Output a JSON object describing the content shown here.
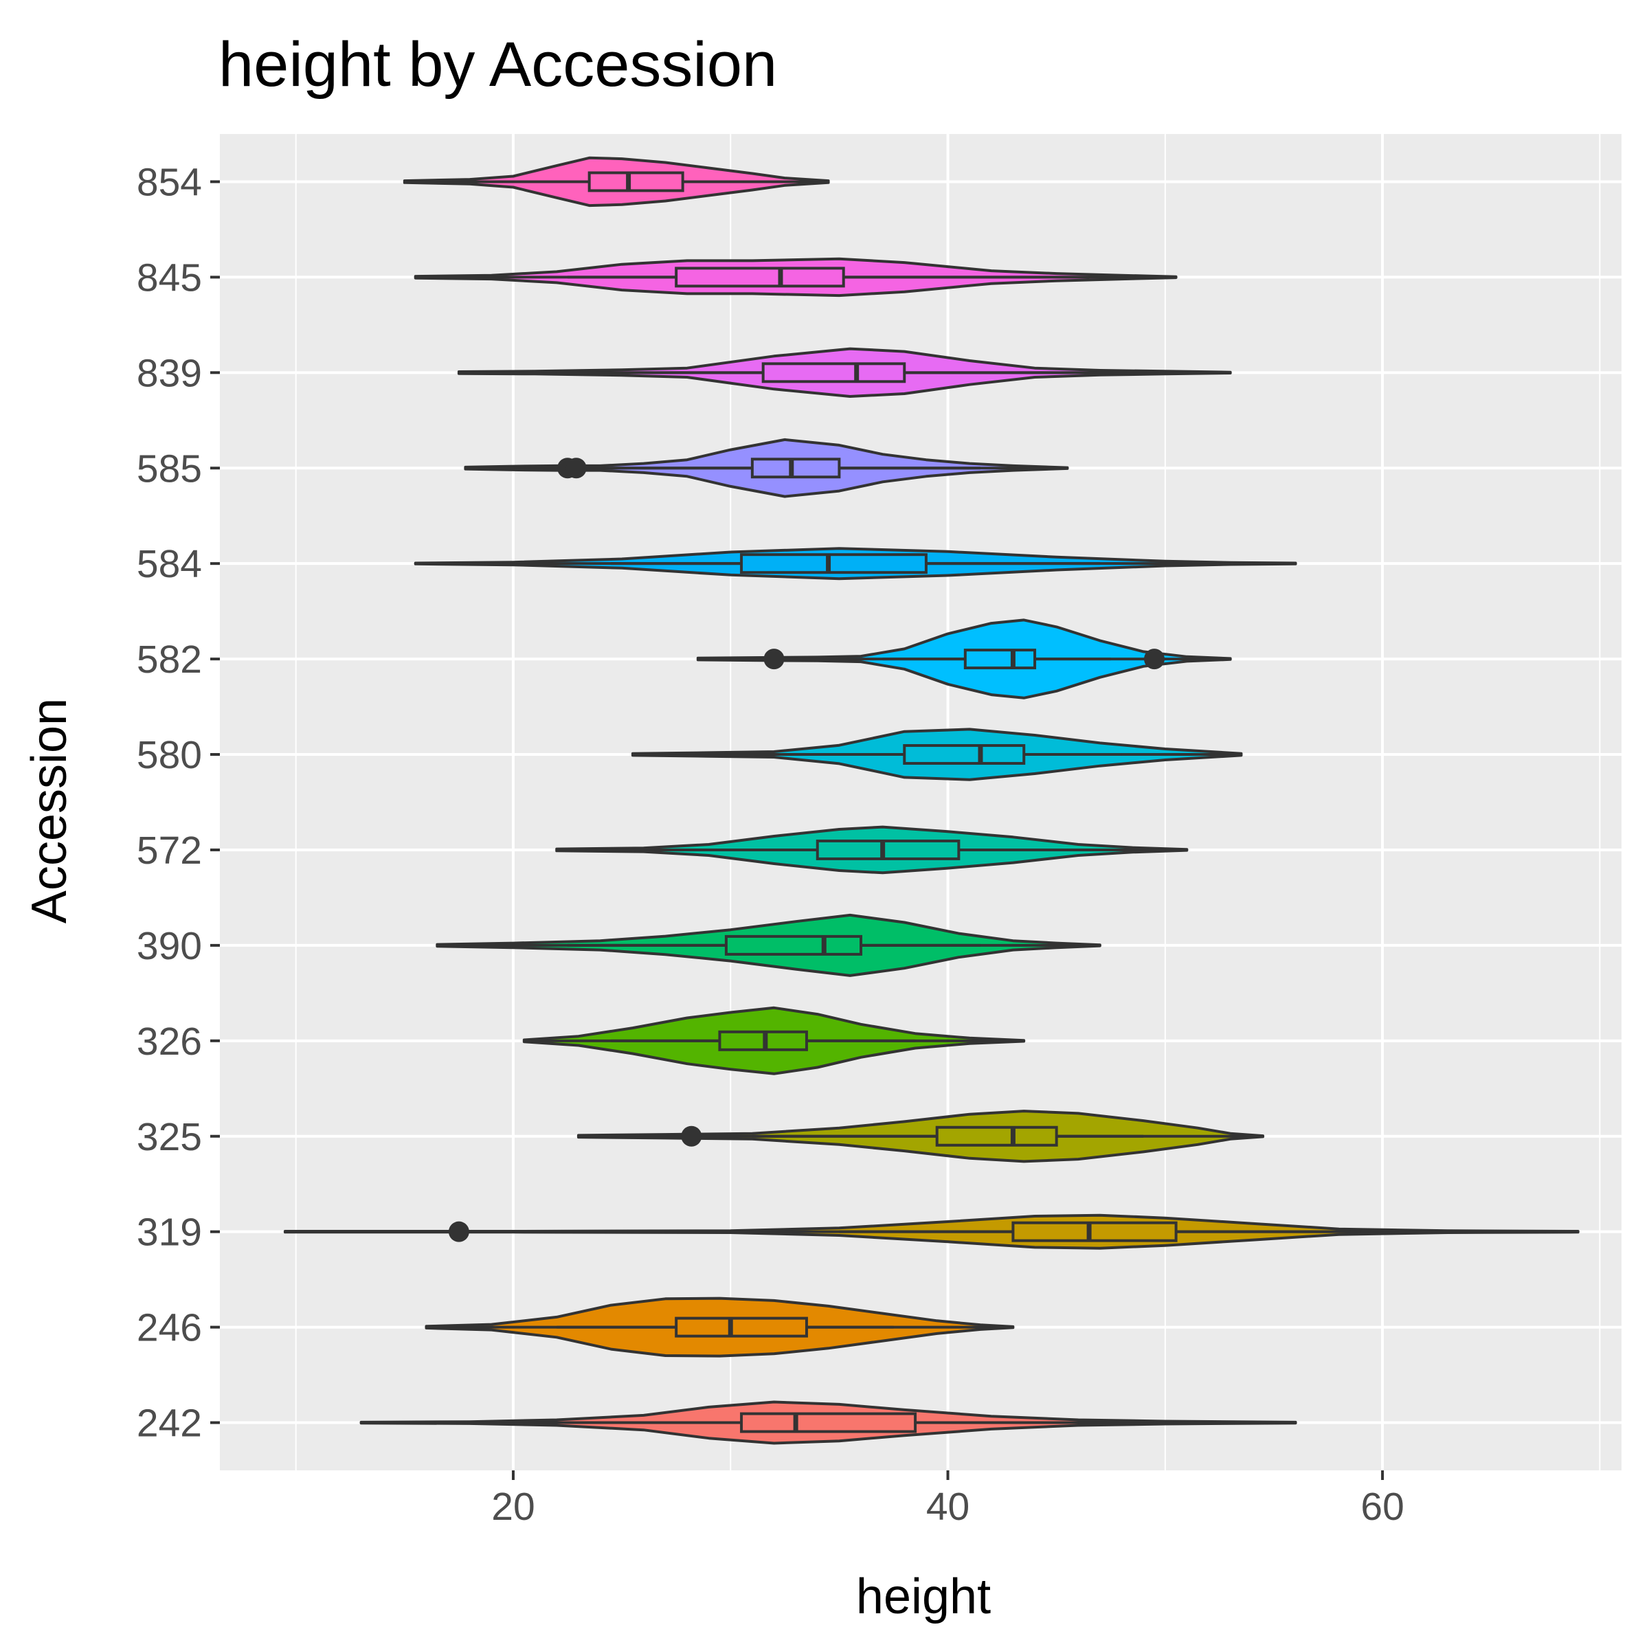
{
  "chart_data": {
    "type": "violin",
    "title": "height by Accession",
    "xlabel": "height",
    "ylabel": "Accession",
    "xlim": [
      6.5,
      71
    ],
    "x_ticks": [
      20,
      40,
      60
    ],
    "x_minor_ticks": [
      10,
      30,
      50,
      70
    ],
    "grid": true,
    "legend": "none",
    "panel_color": "#EBEBEB",
    "grid_color": "#FFFFFF",
    "outline_color": "#333333",
    "series": [
      {
        "category": "854",
        "color": "#FF62BC",
        "min": 15.0,
        "max": 34.5,
        "q1": 23.5,
        "median": 25.3,
        "q3": 27.8,
        "whisker_low": 19.5,
        "whisker_high": 30.6,
        "outliers": [],
        "density": [
          [
            15.0,
            0.02
          ],
          [
            18.0,
            0.05
          ],
          [
            20.0,
            0.12
          ],
          [
            22.0,
            0.35
          ],
          [
            23.5,
            0.52
          ],
          [
            25.0,
            0.5
          ],
          [
            27.0,
            0.42
          ],
          [
            29.0,
            0.3
          ],
          [
            31.0,
            0.18
          ],
          [
            32.5,
            0.08
          ],
          [
            34.5,
            0.02
          ]
        ]
      },
      {
        "category": "845",
        "color": "#F564E3",
        "min": 15.5,
        "max": 50.5,
        "q1": 27.5,
        "median": 32.3,
        "q3": 35.2,
        "whisker_low": 22.5,
        "whisker_high": 46.5,
        "outliers": [],
        "density": [
          [
            15.5,
            0.02
          ],
          [
            19.0,
            0.04
          ],
          [
            22.0,
            0.12
          ],
          [
            25.0,
            0.28
          ],
          [
            28.0,
            0.36
          ],
          [
            31.0,
            0.36
          ],
          [
            35.0,
            0.4
          ],
          [
            38.0,
            0.32
          ],
          [
            42.0,
            0.14
          ],
          [
            45.0,
            0.08
          ],
          [
            48.0,
            0.04
          ],
          [
            50.5,
            0.01
          ]
        ]
      },
      {
        "category": "839",
        "color": "#E76BF3",
        "min": 17.5,
        "max": 53.0,
        "q1": 31.5,
        "median": 35.8,
        "q3": 38.0,
        "whisker_low": 22.0,
        "whisker_high": 53.0,
        "outliers": [],
        "density": [
          [
            17.5,
            0.02
          ],
          [
            21.0,
            0.03
          ],
          [
            25.0,
            0.06
          ],
          [
            28.0,
            0.1
          ],
          [
            32.0,
            0.36
          ],
          [
            35.5,
            0.52
          ],
          [
            38.0,
            0.46
          ],
          [
            41.0,
            0.26
          ],
          [
            44.0,
            0.1
          ],
          [
            47.0,
            0.05
          ],
          [
            50.0,
            0.03
          ],
          [
            53.0,
            0.01
          ]
        ]
      },
      {
        "category": "585",
        "color": "#9590FF",
        "min": 17.8,
        "max": 45.5,
        "q1": 31.0,
        "median": 32.8,
        "q3": 35.0,
        "whisker_low": 23.0,
        "whisker_high": 41.5,
        "outliers": [
          22.5,
          22.9
        ],
        "density": [
          [
            17.8,
            0.02
          ],
          [
            20.0,
            0.04
          ],
          [
            22.0,
            0.05
          ],
          [
            24.0,
            0.05
          ],
          [
            26.0,
            0.1
          ],
          [
            28.0,
            0.18
          ],
          [
            30.0,
            0.4
          ],
          [
            32.5,
            0.62
          ],
          [
            35.0,
            0.5
          ],
          [
            37.0,
            0.3
          ],
          [
            39.0,
            0.18
          ],
          [
            41.0,
            0.1
          ],
          [
            43.0,
            0.05
          ],
          [
            45.5,
            0.01
          ]
        ]
      },
      {
        "category": "584",
        "color": "#00B0F6",
        "min": 15.5,
        "max": 56.0,
        "q1": 30.5,
        "median": 34.5,
        "q3": 39.0,
        "whisker_low": 24.5,
        "whisker_high": 47.0,
        "outliers": [],
        "density": [
          [
            15.5,
            0.01
          ],
          [
            20.0,
            0.03
          ],
          [
            25.0,
            0.1
          ],
          [
            30.0,
            0.25
          ],
          [
            35.0,
            0.33
          ],
          [
            40.0,
            0.26
          ],
          [
            45.0,
            0.14
          ],
          [
            50.0,
            0.05
          ],
          [
            53.0,
            0.02
          ],
          [
            56.0,
            0.01
          ]
        ]
      },
      {
        "category": "582",
        "color": "#00BFFF",
        "min": 28.5,
        "max": 53.0,
        "q1": 40.8,
        "median": 43.0,
        "q3": 44.0,
        "whisker_low": 37.0,
        "whisker_high": 47.5,
        "outliers": [
          32.0,
          49.5
        ],
        "density": [
          [
            28.5,
            0.02
          ],
          [
            31.0,
            0.03
          ],
          [
            34.0,
            0.04
          ],
          [
            36.0,
            0.06
          ],
          [
            38.0,
            0.22
          ],
          [
            40.0,
            0.55
          ],
          [
            42.0,
            0.78
          ],
          [
            43.5,
            0.85
          ],
          [
            45.0,
            0.7
          ],
          [
            47.0,
            0.4
          ],
          [
            49.0,
            0.16
          ],
          [
            51.0,
            0.05
          ],
          [
            53.0,
            0.01
          ]
        ]
      },
      {
        "category": "580",
        "color": "#00BCD8",
        "min": 25.5,
        "max": 53.5,
        "q1": 38.0,
        "median": 41.5,
        "q3": 43.5,
        "whisker_low": 30.5,
        "whisker_high": 48.0,
        "outliers": [],
        "density": [
          [
            25.5,
            0.02
          ],
          [
            29.0,
            0.04
          ],
          [
            32.0,
            0.06
          ],
          [
            35.0,
            0.2
          ],
          [
            38.0,
            0.5
          ],
          [
            41.0,
            0.55
          ],
          [
            44.0,
            0.42
          ],
          [
            47.0,
            0.25
          ],
          [
            50.0,
            0.12
          ],
          [
            53.5,
            0.02
          ]
        ]
      },
      {
        "category": "572",
        "color": "#00C1A3",
        "min": 22.0,
        "max": 51.0,
        "q1": 34.0,
        "median": 37.0,
        "q3": 40.5,
        "whisker_low": 26.5,
        "whisker_high": 45.5,
        "outliers": [],
        "density": [
          [
            22.0,
            0.02
          ],
          [
            26.0,
            0.04
          ],
          [
            29.0,
            0.12
          ],
          [
            32.0,
            0.3
          ],
          [
            35.0,
            0.45
          ],
          [
            37.0,
            0.5
          ],
          [
            40.0,
            0.4
          ],
          [
            43.0,
            0.28
          ],
          [
            46.0,
            0.12
          ],
          [
            48.5,
            0.05
          ],
          [
            51.0,
            0.01
          ]
        ]
      },
      {
        "category": "390",
        "color": "#00BE67",
        "min": 16.5,
        "max": 47.0,
        "q1": 29.8,
        "median": 34.3,
        "q3": 36.0,
        "whisker_low": 22.5,
        "whisker_high": 41.5,
        "outliers": [],
        "density": [
          [
            16.5,
            0.02
          ],
          [
            20.0,
            0.05
          ],
          [
            24.0,
            0.1
          ],
          [
            27.0,
            0.2
          ],
          [
            30.0,
            0.34
          ],
          [
            33.0,
            0.52
          ],
          [
            35.5,
            0.66
          ],
          [
            38.0,
            0.5
          ],
          [
            40.5,
            0.26
          ],
          [
            43.0,
            0.1
          ],
          [
            45.0,
            0.05
          ],
          [
            47.0,
            0.01
          ]
        ]
      },
      {
        "category": "326",
        "color": "#53B400",
        "min": 20.5,
        "max": 43.5,
        "q1": 29.5,
        "median": 31.6,
        "q3": 33.5,
        "whisker_low": 24.5,
        "whisker_high": 38.5,
        "outliers": [],
        "density": [
          [
            20.5,
            0.02
          ],
          [
            23.0,
            0.1
          ],
          [
            25.5,
            0.28
          ],
          [
            28.0,
            0.5
          ],
          [
            30.0,
            0.62
          ],
          [
            32.0,
            0.72
          ],
          [
            34.0,
            0.58
          ],
          [
            36.0,
            0.36
          ],
          [
            38.5,
            0.16
          ],
          [
            41.0,
            0.06
          ],
          [
            43.5,
            0.01
          ]
        ]
      },
      {
        "category": "325",
        "color": "#A3A500",
        "min": 23.0,
        "max": 54.5,
        "q1": 39.5,
        "median": 43.0,
        "q3": 45.0,
        "whisker_low": 31.0,
        "whisker_high": 49.0,
        "outliers": [
          28.2
        ],
        "density": [
          [
            23.0,
            0.02
          ],
          [
            27.0,
            0.04
          ],
          [
            31.0,
            0.06
          ],
          [
            35.0,
            0.18
          ],
          [
            38.0,
            0.32
          ],
          [
            41.0,
            0.48
          ],
          [
            43.5,
            0.55
          ],
          [
            46.0,
            0.5
          ],
          [
            49.0,
            0.34
          ],
          [
            51.5,
            0.18
          ],
          [
            53.0,
            0.06
          ],
          [
            54.5,
            0.01
          ]
        ]
      },
      {
        "category": "319",
        "color": "#C49A00",
        "min": 9.5,
        "max": 69.0,
        "q1": 43.0,
        "median": 46.5,
        "q3": 50.5,
        "whisker_low": 35.0,
        "whisker_high": 59.0,
        "outliers": [
          17.5
        ],
        "density": [
          [
            9.5,
            0.01
          ],
          [
            20.0,
            0.01
          ],
          [
            30.0,
            0.02
          ],
          [
            35.0,
            0.08
          ],
          [
            40.0,
            0.22
          ],
          [
            44.0,
            0.34
          ],
          [
            47.0,
            0.36
          ],
          [
            50.0,
            0.3
          ],
          [
            54.0,
            0.18
          ],
          [
            58.0,
            0.06
          ],
          [
            63.0,
            0.02
          ],
          [
            69.0,
            0.01
          ]
        ]
      },
      {
        "category": "246",
        "color": "#E38900",
        "min": 16.0,
        "max": 43.0,
        "q1": 27.5,
        "median": 30.0,
        "q3": 33.5,
        "whisker_low": 22.0,
        "whisker_high": 37.5,
        "outliers": [],
        "density": [
          [
            16.0,
            0.02
          ],
          [
            19.0,
            0.06
          ],
          [
            22.0,
            0.22
          ],
          [
            24.5,
            0.48
          ],
          [
            27.0,
            0.62
          ],
          [
            29.5,
            0.63
          ],
          [
            32.0,
            0.58
          ],
          [
            34.5,
            0.46
          ],
          [
            37.0,
            0.3
          ],
          [
            39.5,
            0.14
          ],
          [
            41.5,
            0.05
          ],
          [
            43.0,
            0.01
          ]
        ]
      },
      {
        "category": "242",
        "color": "#F8766D",
        "min": 13.0,
        "max": 56.0,
        "q1": 30.5,
        "median": 33.0,
        "q3": 38.5,
        "whisker_low": 24.0,
        "whisker_high": 46.0,
        "outliers": [],
        "density": [
          [
            13.0,
            0.01
          ],
          [
            18.0,
            0.02
          ],
          [
            22.0,
            0.06
          ],
          [
            26.0,
            0.16
          ],
          [
            29.0,
            0.34
          ],
          [
            32.0,
            0.45
          ],
          [
            35.0,
            0.4
          ],
          [
            38.0,
            0.28
          ],
          [
            42.0,
            0.14
          ],
          [
            46.0,
            0.06
          ],
          [
            50.0,
            0.03
          ],
          [
            56.0,
            0.01
          ]
        ]
      }
    ]
  }
}
